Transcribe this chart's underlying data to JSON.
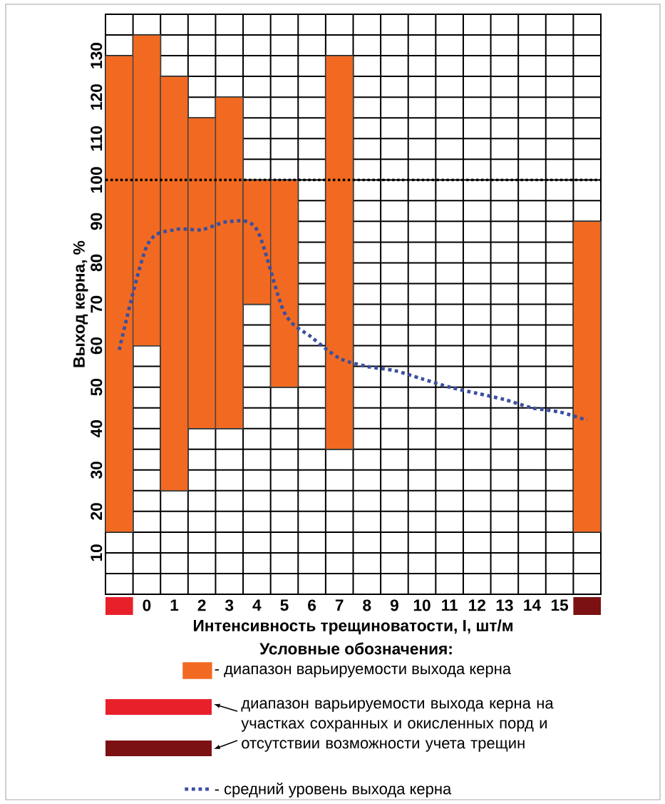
{
  "chart_data": {
    "type": "bar",
    "xlabel": "Интенсивность трещиноватости, I, шт/м",
    "ylabel": "Выход керна, %",
    "legend_title": "Условные обозначения:",
    "categories": [
      null,
      "0",
      "1",
      "2",
      "3",
      "4",
      "5",
      "6",
      "7",
      "8",
      "9",
      "10",
      "11",
      "12",
      "13",
      "14",
      "15",
      null
    ],
    "series": [
      {
        "name": "- диапазон варьируемости выхода керна",
        "color": "#f26a21",
        "base": [
          15,
          60,
          25,
          40,
          40,
          70,
          50,
          null,
          35,
          null,
          null,
          null,
          null,
          null,
          null,
          null,
          null,
          15
        ],
        "values": [
          115,
          75,
          100,
          75,
          80,
          30,
          50,
          null,
          95,
          null,
          null,
          null,
          null,
          null,
          null,
          null,
          null,
          75
        ]
      },
      {
        "name": "- средний уровень выхода керна",
        "type": "line",
        "color": "#3b4fa0",
        "line_style": "dotted",
        "values": [
          59,
          84,
          88,
          88,
          90,
          88,
          68,
          62,
          57,
          55,
          54,
          52,
          50,
          48.5,
          47,
          45,
          44,
          42
        ]
      }
    ],
    "annotations": [
      "диапазон варьируемости выхода керна на участках сохранных и окисленных порд и отсутствии возможности учета трещин"
    ],
    "ref_lines": [
      {
        "axis": "y",
        "value": 100,
        "color": "#000000",
        "line_style": "dotted"
      }
    ],
    "ylim": [
      0,
      140
    ],
    "yticks": [
      {
        "value": 0,
        "label": null
      },
      {
        "value": 5,
        "label": null
      },
      10,
      {
        "value": 15,
        "label": null
      },
      20,
      {
        "value": 25,
        "label": null
      },
      30,
      {
        "value": 35,
        "label": null
      },
      40,
      {
        "value": 45,
        "label": null
      },
      50,
      {
        "value": 55,
        "label": null
      },
      60,
      {
        "value": 65,
        "label": null
      },
      70,
      {
        "value": 75,
        "label": null
      },
      80,
      {
        "value": 85,
        "label": null
      },
      90,
      {
        "value": 95,
        "label": null
      },
      100,
      {
        "value": 105,
        "label": null
      },
      110,
      {
        "value": 115,
        "label": null
      },
      120,
      {
        "value": 125,
        "label": null
      },
      130,
      {
        "value": 135,
        "label": null
      },
      {
        "value": 140,
        "label": null
      }
    ],
    "grid": true,
    "legend": "bottom"
  }
}
